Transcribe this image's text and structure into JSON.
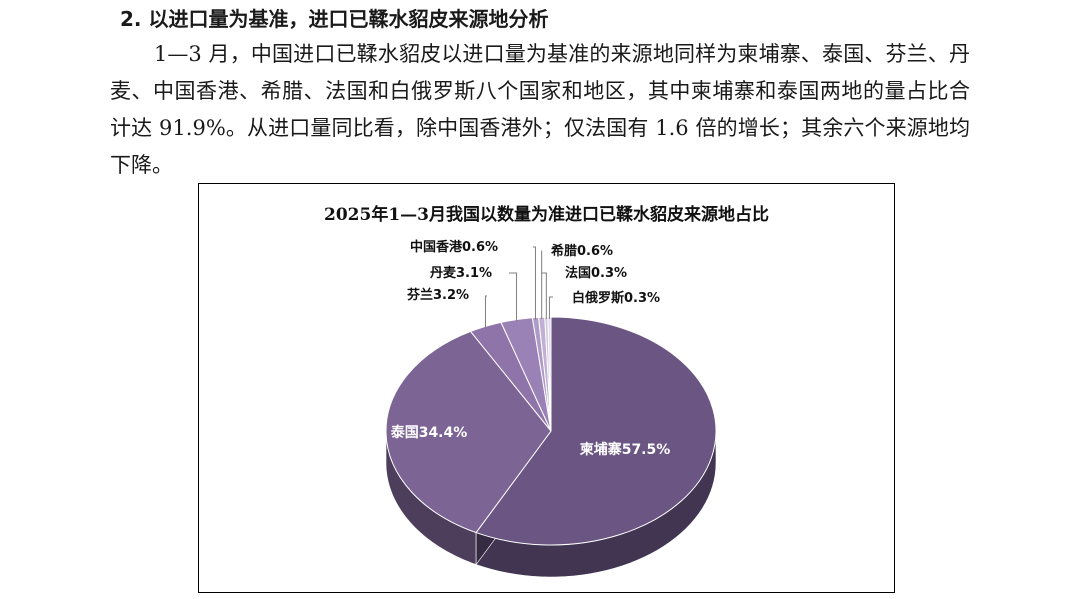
{
  "section": {
    "heading": "2. 以进口量为基准，进口已鞣水貂皮来源地分析",
    "paragraph": "1—3 月，中国进口已鞣水貂皮以进口量为基准的来源地同样为柬埔寨、泰国、芬兰、丹麦、中国香港、希腊、法国和白俄罗斯八个国家和地区，其中柬埔寨和泰国两地的量占比合计达 91.9%。从进口量同比看，除中国香港外；仅法国有 1.6 倍的增长；其余六个来源地均下降。"
  },
  "chart_data": {
    "type": "pie",
    "title": "2025年1—3月我国以数量为准进口已鞣水貂皮来源地占比",
    "slices": [
      {
        "label": "柬埔寨",
        "value": 57.5,
        "display": "柬埔寨57.5%",
        "color": "#6a5583"
      },
      {
        "label": "泰国",
        "value": 34.4,
        "display": "泰国34.4%",
        "color": "#7c6495"
      },
      {
        "label": "芬兰",
        "value": 3.2,
        "display": "芬兰3.2%",
        "color": "#8e74a8"
      },
      {
        "label": "丹麦",
        "value": 3.1,
        "display": "丹麦3.1%",
        "color": "#9a82b6"
      },
      {
        "label": "中国香港",
        "value": 0.6,
        "display": "中国香港0.6%",
        "color": "#ae9ac6"
      },
      {
        "label": "希腊",
        "value": 0.6,
        "display": "希腊0.6%",
        "color": "#c1b0d4"
      },
      {
        "label": "法国",
        "value": 0.3,
        "display": "法国0.3%",
        "color": "#d2c6e1"
      },
      {
        "label": "白俄罗斯",
        "value": 0.3,
        "display": "白俄罗斯0.3%",
        "color": "#e2daec"
      }
    ]
  }
}
